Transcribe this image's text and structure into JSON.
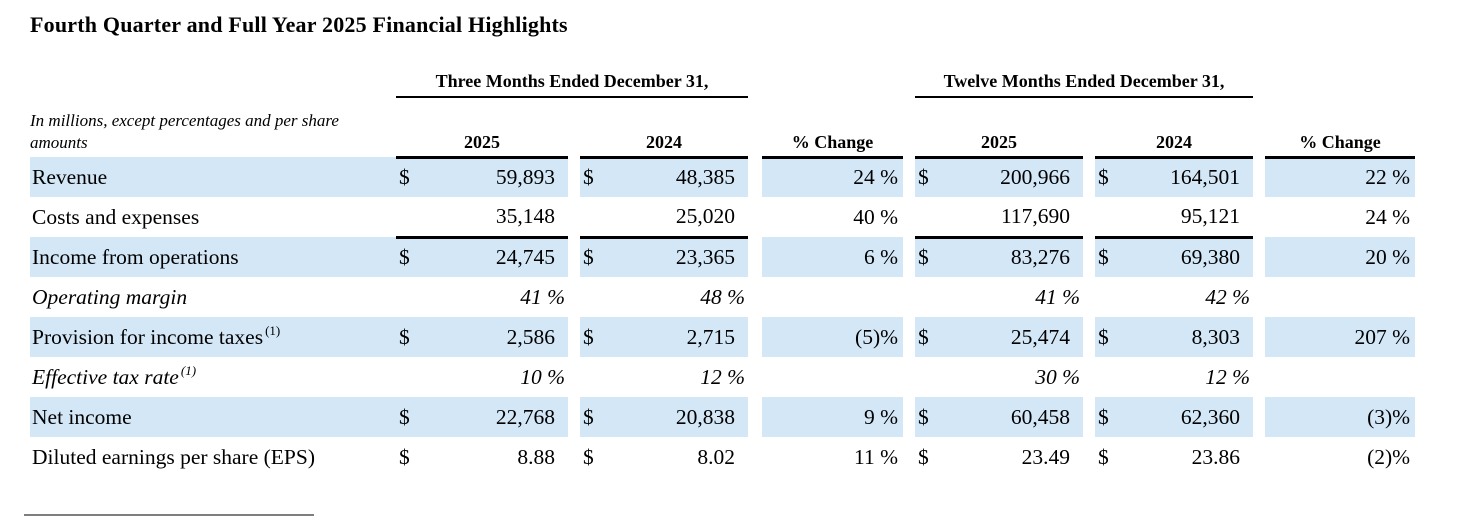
{
  "page": {
    "title": "Fourth Quarter and Full Year 2025 Financial Highlights"
  },
  "colors": {
    "row_highlight": "#d3e7f7",
    "text": "#000000",
    "footnote_rule": "#7f7f7f"
  },
  "table": {
    "units_note": "In millions, except percentages and per share amounts",
    "group_headers": {
      "three_months": "Three Months Ended December 31,",
      "twelve_months": "Twelve Months Ended December 31,"
    },
    "column_headers": {
      "q_2025": "2025",
      "q_2024": "2024",
      "q_change": "% Change",
      "y_2025": "2025",
      "y_2024": "2024",
      "y_change": "% Change"
    },
    "rows": [
      {
        "label": "Revenue",
        "shaded": true,
        "d1": "$",
        "v1": "59,893",
        "d2": "$",
        "v2": "48,385",
        "pc1": "24 %",
        "d3": "$",
        "v3": "200,966",
        "d4": "$",
        "v4": "164,501",
        "pc2": "22 %"
      },
      {
        "label": "Costs and expenses",
        "rule_below": true,
        "v1": "35,148",
        "v2": "25,020",
        "pc1": "40 %",
        "v3": "117,690",
        "v4": "95,121",
        "pc2": "24 %"
      },
      {
        "label": "Income from operations",
        "shaded": true,
        "d1": "$",
        "v1": "24,745",
        "d2": "$",
        "v2": "23,365",
        "pc1": "6 %",
        "d3": "$",
        "v3": "83,276",
        "d4": "$",
        "v4": "69,380",
        "pc2": "20 %"
      },
      {
        "label": "Operating margin",
        "italic": true,
        "v1": "41 %",
        "v2": "48 %",
        "v3": "41 %",
        "v4": "42 %"
      },
      {
        "label": "Provision for income taxes",
        "sup": "(1)",
        "shaded": true,
        "d1": "$",
        "v1": "2,586",
        "d2": "$",
        "v2": "2,715",
        "pc1": "(5)%",
        "d3": "$",
        "v3": "25,474",
        "d4": "$",
        "v4": "8,303",
        "pc2": "207 %"
      },
      {
        "label": "Effective tax rate",
        "sup": "(1)",
        "italic": true,
        "v1": "10 %",
        "v2": "12 %",
        "v3": "30 %",
        "v4": "12 %"
      },
      {
        "label": "Net income",
        "shaded": true,
        "d1": "$",
        "v1": "22,768",
        "d2": "$",
        "v2": "20,838",
        "pc1": "9 %",
        "d3": "$",
        "v3": "60,458",
        "d4": "$",
        "v4": "62,360",
        "pc2": "(3)%"
      },
      {
        "label": "Diluted earnings per share (EPS)",
        "d1": "$",
        "v1": "8.88",
        "d2": "$",
        "v2": "8.02",
        "pc1": "11 %",
        "d3": "$",
        "v3": "23.49",
        "d4": "$",
        "v4": "23.86",
        "pc2": "(2)%"
      }
    ]
  }
}
